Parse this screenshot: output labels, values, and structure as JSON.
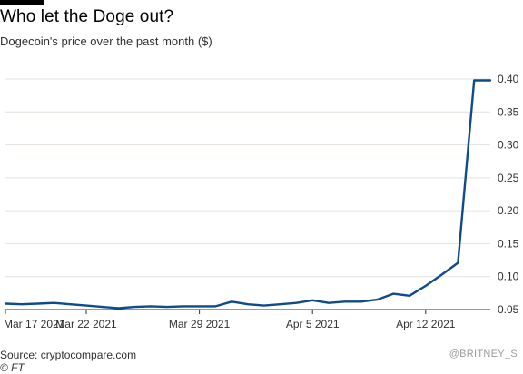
{
  "header": {
    "title": "Who let the Doge out?",
    "subtitle": "Dogecoin's price over the past month ($)"
  },
  "footer": {
    "source": "Source: cryptocompare.com",
    "credit": "© FT",
    "watermark": "@BRITNEY_S"
  },
  "colors": {
    "line": "#0f4a8a",
    "grid": "#e6e1dc",
    "axis": "#33302e",
    "text": "#33302e"
  },
  "chart_data": {
    "type": "line",
    "title": "Who let the Doge out?",
    "subtitle": "Dogecoin's price over the past month ($)",
    "xlabel": "",
    "ylabel": "",
    "x_ticks": [
      "Mar 17 2021",
      "Mar 22 2021",
      "Mar 29 2021",
      "Apr 5 2021",
      "Apr 12 2021"
    ],
    "y_ticks": [
      0.05,
      0.1,
      0.15,
      0.2,
      0.25,
      0.3,
      0.35,
      0.4
    ],
    "ylim": [
      0.05,
      0.4
    ],
    "xlim": [
      "2021-03-17",
      "2021-04-16"
    ],
    "grid": true,
    "y_axis_position": "right",
    "series": [
      {
        "x": [
          "2021-03-17",
          "2021-03-18",
          "2021-03-19",
          "2021-03-20",
          "2021-03-21",
          "2021-03-22",
          "2021-03-23",
          "2021-03-24",
          "2021-03-25",
          "2021-03-26",
          "2021-03-27",
          "2021-03-28",
          "2021-03-29",
          "2021-03-30",
          "2021-03-31",
          "2021-04-01",
          "2021-04-02",
          "2021-04-03",
          "2021-04-04",
          "2021-04-05",
          "2021-04-06",
          "2021-04-07",
          "2021-04-08",
          "2021-04-09",
          "2021-04-10",
          "2021-04-11",
          "2021-04-12",
          "2021-04-13",
          "2021-04-14",
          "2021-04-15",
          "2021-04-16"
        ],
        "values": [
          0.059,
          0.058,
          0.059,
          0.06,
          0.058,
          0.056,
          0.054,
          0.052,
          0.054,
          0.055,
          0.054,
          0.055,
          0.055,
          0.055,
          0.062,
          0.058,
          0.056,
          0.058,
          0.06,
          0.064,
          0.06,
          0.062,
          0.062,
          0.065,
          0.074,
          0.071,
          0.086,
          0.103,
          0.121,
          0.398,
          0.398
        ]
      }
    ]
  }
}
